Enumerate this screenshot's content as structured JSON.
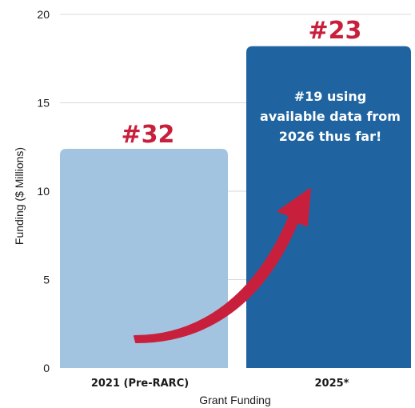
{
  "chart_data": {
    "type": "bar",
    "categories": [
      "2021 (Pre-RARC)",
      "2025*"
    ],
    "values": [
      12.4,
      18.2
    ],
    "xlabel": "Grant Funding",
    "ylabel": "Funding ($ Millions)",
    "ylim": [
      0,
      20
    ],
    "yticks": [
      "0",
      "5",
      "10",
      "15",
      "20"
    ],
    "grid": true,
    "bar_colors": [
      "#a3c4e1",
      "#1f64a0"
    ],
    "annotations": {
      "rank_labels": [
        "#32",
        "#23"
      ],
      "rank_color": "#c8203c",
      "note_lines": [
        "#19 using",
        "available data from",
        "2026 thus far!"
      ],
      "arrow_color": "#c8203c"
    }
  }
}
